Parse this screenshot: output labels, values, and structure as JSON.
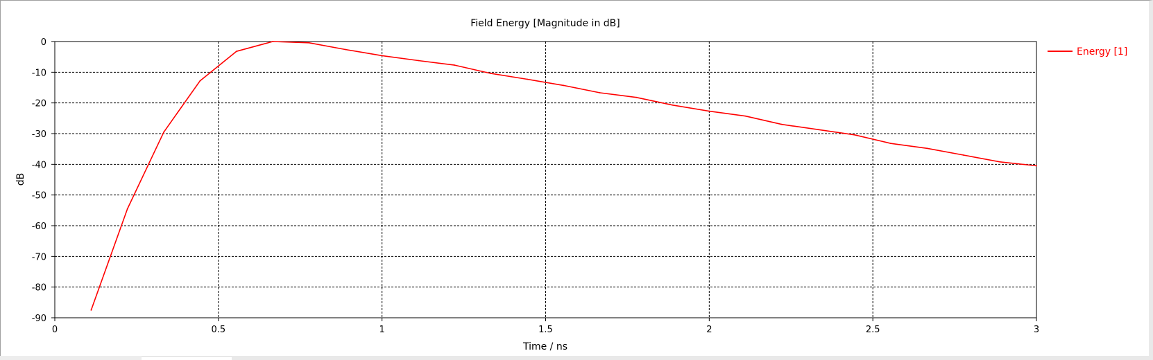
{
  "chart_data": {
    "type": "line",
    "title": "Field Energy [Magnitude in dB]",
    "xlabel": "Time / ns",
    "ylabel": "dB",
    "xlim": [
      0,
      3
    ],
    "ylim": [
      -90,
      0
    ],
    "xticks": [
      0,
      0.5,
      1,
      1.5,
      2,
      2.5,
      3
    ],
    "xtick_labels": [
      "0",
      "0.5",
      "1",
      "1.5",
      "2",
      "2.5",
      "3"
    ],
    "yticks": [
      0,
      -10,
      -20,
      -30,
      -40,
      -50,
      -60,
      -70,
      -80,
      -90
    ],
    "ytick_labels": [
      "0",
      "-10",
      "-20",
      "-30",
      "-40",
      "-50",
      "-60",
      "-70",
      "-80",
      "-90"
    ],
    "grid": true,
    "legend_position": "top-right outside",
    "series": [
      {
        "name": "Energy [1]",
        "color": "#ff0000",
        "x": [
          0.111,
          0.222,
          0.333,
          0.444,
          0.555,
          0.666,
          0.777,
          0.888,
          1.0,
          1.111,
          1.222,
          1.333,
          1.444,
          1.555,
          1.666,
          1.777,
          1.888,
          2.0,
          2.111,
          2.222,
          2.333,
          2.444,
          2.555,
          2.666,
          2.777,
          2.888,
          3.0
        ],
        "y": [
          -87.5,
          -54.5,
          -29.5,
          -12.8,
          -3.2,
          0,
          -0.4,
          -2.6,
          -4.6,
          -6.2,
          -7.7,
          -10.4,
          -12.3,
          -14.3,
          -16.7,
          -18.2,
          -20.7,
          -22.7,
          -24.3,
          -27.0,
          -28.7,
          -30.4,
          -33.2,
          -34.8,
          -37.0,
          -39.2,
          -40.5
        ]
      }
    ]
  }
}
